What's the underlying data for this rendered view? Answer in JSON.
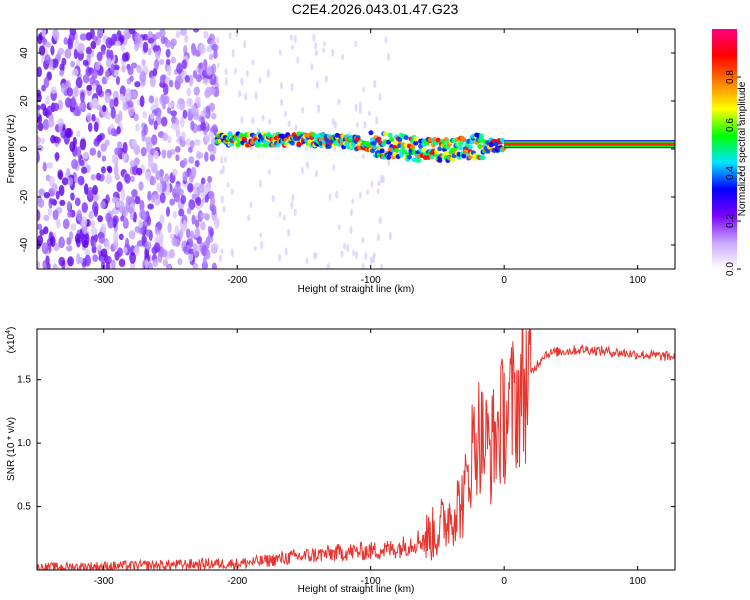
{
  "title": "C2E4.2026.043.01.47.G23",
  "chart_data": [
    {
      "type": "heatmap",
      "name": "spectrogram",
      "xlabel": "Height of straight line (km)",
      "ylabel": "Frequency (Hz)",
      "xlim": [
        -350,
        128
      ],
      "ylim": [
        -50,
        50
      ],
      "xticks": [
        -300,
        -200,
        -100,
        0,
        100
      ],
      "yticks": [
        -40,
        -20,
        0,
        20,
        40
      ],
      "description_series": [
        {
          "name": "noise region",
          "x_range": [
            -350,
            -215
          ]
        },
        {
          "name": "carrier ridge",
          "x": [
            -215,
            -180,
            -150,
            -120,
            -100,
            -80,
            -60,
            -40,
            -20,
            0,
            20,
            60,
            100,
            128
          ],
          "y": [
            4,
            4,
            4,
            3,
            2,
            1,
            0,
            -1,
            1,
            2,
            2,
            2,
            2,
            2
          ]
        }
      ],
      "colorbar": {
        "label": "Normalized spectral amplitude",
        "range": [
          0,
          1
        ],
        "ticks": [
          "0.0",
          "0.2",
          "0.4",
          "0.6",
          "0.8"
        ],
        "colors": [
          "#ffffff",
          "#c7a6ff",
          "#7a00ff",
          "#0000ff",
          "#00e5ff",
          "#00ff00",
          "#ffff00",
          "#ff7f00",
          "#ff0000",
          "#ff0080"
        ]
      }
    },
    {
      "type": "line",
      "name": "snr",
      "xlabel": "Height of straight line (km)",
      "ylabel": "SNR (10 * v/v)",
      "scale_note_base": "(x10",
      "scale_note_exp": "4",
      "scale_note_end": ")",
      "xlim": [
        -350,
        128
      ],
      "ylim": [
        0,
        1.9
      ],
      "xticks": [
        -300,
        -200,
        -100,
        0,
        100
      ],
      "yticks": [
        0.5,
        1.0,
        1.5
      ],
      "series": [
        {
          "name": "SNR",
          "color": "#e8342e",
          "x": [
            -350,
            -300,
            -250,
            -220,
            -200,
            -180,
            -160,
            -140,
            -120,
            -100,
            -80,
            -60,
            -50,
            -40,
            -30,
            -25,
            -20,
            -15,
            -10,
            -5,
            0,
            10,
            20,
            30,
            40,
            60,
            80,
            100,
            128
          ],
          "y": [
            0.02,
            0.03,
            0.04,
            0.05,
            0.05,
            0.07,
            0.1,
            0.12,
            0.14,
            0.15,
            0.17,
            0.25,
            0.3,
            0.45,
            0.55,
            0.9,
            1.1,
            1.0,
            0.95,
            1.1,
            1.2,
            1.35,
            1.55,
            1.7,
            1.72,
            1.74,
            1.72,
            1.7,
            1.68
          ]
        }
      ]
    }
  ]
}
